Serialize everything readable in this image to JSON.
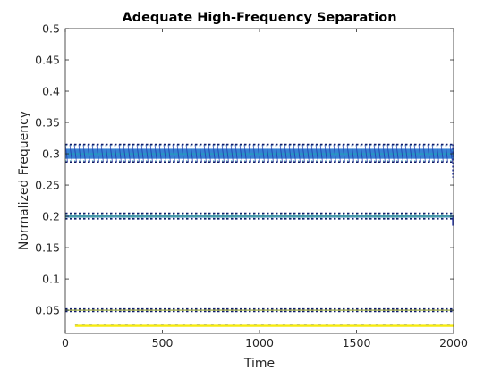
{
  "chart_data": {
    "type": "line",
    "title": "Adequate High-Frequency Separation",
    "xlabel": "Time",
    "ylabel": "Normalized Frequency",
    "xlim": [
      0,
      2000
    ],
    "ylim": [
      0.013,
      0.5
    ],
    "grid": false,
    "xticks": [
      0,
      500,
      1000,
      1500,
      2000
    ],
    "xtick_labels": [
      "0",
      "500",
      "1000",
      "1500",
      "2000"
    ],
    "yticks": [
      0.05,
      0.1,
      0.15,
      0.2,
      0.25,
      0.3,
      0.35,
      0.4,
      0.45,
      0.5
    ],
    "ytick_labels": [
      "0.05",
      "0.1",
      "0.15",
      "0.2",
      "0.25",
      "0.3",
      "0.35",
      "0.4",
      "0.45",
      "0.5"
    ],
    "bands": [
      {
        "center": 0.3,
        "x": [
          0,
          2000
        ],
        "core": [
          0.292,
          0.308
        ],
        "spread": [
          0.287,
          0.315
        ],
        "colors": {
          "core": "#2c7bd1",
          "edge": "#1e2fa6",
          "accent": "#1ba7b5",
          "dark": "#101c68"
        }
      },
      {
        "center": 0.2,
        "x": [
          0,
          2000
        ],
        "core": [
          0.198,
          0.202
        ],
        "spread": [
          0.196,
          0.205
        ],
        "colors": {
          "core": "#3a6fd0",
          "edge": "#1e2fa6",
          "accent": "#4dbf86",
          "dark": "#0f1e6b"
        }
      },
      {
        "center": 0.05,
        "x": [
          0,
          2000
        ],
        "core": [
          0.049,
          0.051
        ],
        "spread": [
          0.048,
          0.052
        ],
        "colors": {
          "core": "#1f9de0",
          "edge": "#1e2fa6",
          "accent": "#d9c93a",
          "dark": "#0f1e6b"
        }
      },
      {
        "center": 0.025,
        "x": [
          50,
          2000
        ],
        "core": [
          0.024,
          0.026
        ],
        "spread": [
          0.024,
          0.026
        ],
        "colors": {
          "core": "#f5ea10",
          "edge": "#f5ea10",
          "accent": "#f5ea10",
          "dark": "#1e2fa6"
        }
      }
    ]
  }
}
